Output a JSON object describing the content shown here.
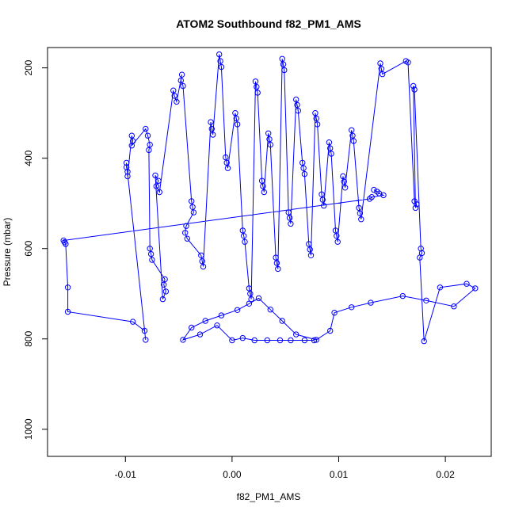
{
  "chart_data": {
    "type": "scatter",
    "title": "ATOM2 Southbound f82_PM1_AMS",
    "xlabel": "f82_PM1_AMS",
    "ylabel": "Pressure (mbar)",
    "xlim": [
      -0.0173,
      0.0243
    ],
    "ylim": [
      1060,
      155
    ],
    "y_reversed": true,
    "x_ticks": [
      -0.01,
      0.0,
      0.01,
      0.02
    ],
    "x_tick_labels": [
      "-0.01",
      "0.00",
      "0.01",
      "0.02"
    ],
    "y_ticks": [
      200,
      400,
      600,
      800,
      1000
    ],
    "y_tick_labels": [
      "200",
      "400",
      "600",
      "800",
      "1000"
    ],
    "grid": false,
    "legend": "none",
    "marker": "open-circle",
    "connected_lines": true,
    "series_color": "#0000ff",
    "series": [
      {
        "values": [
          [
            0.0133,
            470
          ],
          [
            0.0136,
            474
          ],
          [
            0.0138,
            478
          ],
          [
            0.0142,
            482
          ],
          [
            0.0131,
            486
          ],
          [
            0.0129,
            490
          ],
          [
            -0.0158,
            582
          ],
          [
            -0.0157,
            586
          ],
          [
            -0.0156,
            590
          ],
          [
            -0.0154,
            686
          ],
          [
            -0.0154,
            740
          ],
          [
            -0.0093,
            762
          ],
          [
            -0.0082,
            782
          ],
          [
            -0.0081,
            802
          ],
          [
            -0.0099,
            410
          ],
          [
            -0.0099,
            420
          ],
          [
            -0.0098,
            430
          ],
          [
            -0.0098,
            440
          ],
          [
            -0.0094,
            350
          ],
          [
            -0.0093,
            362
          ],
          [
            -0.0094,
            372
          ],
          [
            -0.0081,
            335
          ],
          [
            -0.0079,
            350
          ],
          [
            -0.0077,
            370
          ],
          [
            -0.0078,
            382
          ],
          [
            -0.0077,
            600
          ],
          [
            -0.0076,
            612
          ],
          [
            -0.0075,
            625
          ],
          [
            -0.0063,
            668
          ],
          [
            -0.0064,
            680
          ],
          [
            -0.0062,
            695
          ],
          [
            -0.0065,
            712
          ],
          [
            -0.0072,
            438
          ],
          [
            -0.0069,
            450
          ],
          [
            -0.0071,
            462
          ],
          [
            -0.0068,
            475
          ],
          [
            -0.0055,
            250
          ],
          [
            -0.0054,
            262
          ],
          [
            -0.0052,
            275
          ],
          [
            -0.0047,
            215
          ],
          [
            -0.0048,
            228
          ],
          [
            -0.0046,
            240
          ],
          [
            -0.0038,
            495
          ],
          [
            -0.0037,
            508
          ],
          [
            -0.0036,
            520
          ],
          [
            -0.0043,
            550
          ],
          [
            -0.0044,
            565
          ],
          [
            -0.0042,
            578
          ],
          [
            -0.0029,
            615
          ],
          [
            -0.0028,
            628
          ],
          [
            -0.0027,
            640
          ],
          [
            -0.002,
            320
          ],
          [
            -0.0019,
            335
          ],
          [
            -0.0018,
            348
          ],
          [
            -0.0012,
            170
          ],
          [
            -0.0011,
            185
          ],
          [
            -0.001,
            198
          ],
          [
            -0.0006,
            398
          ],
          [
            -0.0005,
            410
          ],
          [
            -0.0004,
            422
          ],
          [
            0.0003,
            300
          ],
          [
            0.0004,
            312
          ],
          [
            0.0005,
            325
          ],
          [
            0.001,
            560
          ],
          [
            0.0011,
            572
          ],
          [
            0.0012,
            585
          ],
          [
            0.0016,
            688
          ],
          [
            0.0017,
            700
          ],
          [
            0.0018,
            712
          ],
          [
            0.0022,
            230
          ],
          [
            0.0023,
            242
          ],
          [
            0.0024,
            255
          ],
          [
            0.0028,
            450
          ],
          [
            0.0029,
            462
          ],
          [
            0.003,
            475
          ],
          [
            0.0034,
            345
          ],
          [
            0.0035,
            358
          ],
          [
            0.0036,
            370
          ],
          [
            0.0041,
            620
          ],
          [
            0.0042,
            632
          ],
          [
            0.0043,
            645
          ],
          [
            0.0047,
            180
          ],
          [
            0.0048,
            192
          ],
          [
            0.0049,
            205
          ],
          [
            0.0053,
            520
          ],
          [
            0.0054,
            532
          ],
          [
            0.0055,
            545
          ],
          [
            0.006,
            270
          ],
          [
            0.0061,
            282
          ],
          [
            0.0062,
            295
          ],
          [
            0.0066,
            410
          ],
          [
            0.0067,
            422
          ],
          [
            0.0068,
            435
          ],
          [
            0.0072,
            590
          ],
          [
            0.0073,
            602
          ],
          [
            0.0074,
            615
          ],
          [
            0.0078,
            300
          ],
          [
            0.0079,
            312
          ],
          [
            0.008,
            325
          ],
          [
            0.0084,
            480
          ],
          [
            0.0085,
            492
          ],
          [
            0.0086,
            505
          ],
          [
            0.0091,
            365
          ],
          [
            0.0092,
            378
          ],
          [
            0.0093,
            390
          ],
          [
            0.0097,
            560
          ],
          [
            0.0098,
            572
          ],
          [
            0.0099,
            585
          ],
          [
            0.0104,
            440
          ],
          [
            0.0105,
            452
          ],
          [
            0.0106,
            465
          ],
          [
            0.0112,
            338
          ],
          [
            0.0113,
            350
          ],
          [
            0.0114,
            362
          ],
          [
            0.0119,
            510
          ],
          [
            0.012,
            522
          ],
          [
            0.0121,
            535
          ],
          [
            0.0139,
            190
          ],
          [
            0.014,
            202
          ],
          [
            0.0141,
            214
          ],
          [
            0.0163,
            185
          ],
          [
            0.0165,
            188
          ],
          [
            0.0171,
            495
          ],
          [
            0.0173,
            502
          ],
          [
            0.0172,
            510
          ],
          [
            0.017,
            240
          ],
          [
            0.0171,
            248
          ],
          [
            0.0177,
            600
          ],
          [
            0.0178,
            610
          ],
          [
            0.0176,
            620
          ],
          [
            0.018,
            805
          ],
          [
            0.0195,
            686
          ],
          [
            0.022,
            678
          ],
          [
            0.0228,
            688
          ],
          [
            0.0208,
            728
          ],
          [
            0.0182,
            715
          ],
          [
            0.016,
            705
          ],
          [
            0.013,
            720
          ],
          [
            0.0112,
            730
          ],
          [
            0.0096,
            742
          ],
          [
            0.0092,
            782
          ],
          [
            0.0079,
            802
          ],
          [
            0.006,
            790
          ],
          [
            0.0047,
            760
          ],
          [
            0.0036,
            735
          ],
          [
            0.0025,
            710
          ],
          [
            0.0016,
            722
          ],
          [
            0.0005,
            736
          ],
          [
            -0.001,
            748
          ],
          [
            -0.0025,
            760
          ],
          [
            -0.0038,
            775
          ],
          [
            -0.0046,
            802
          ],
          [
            -0.003,
            790
          ],
          [
            -0.0014,
            770
          ],
          [
            0.0,
            803
          ],
          [
            0.001,
            798
          ],
          [
            0.0021,
            803
          ],
          [
            0.0033,
            803
          ],
          [
            0.0045,
            803
          ],
          [
            0.0055,
            803
          ],
          [
            0.0068,
            803
          ],
          [
            0.0077,
            803
          ]
        ]
      }
    ]
  }
}
